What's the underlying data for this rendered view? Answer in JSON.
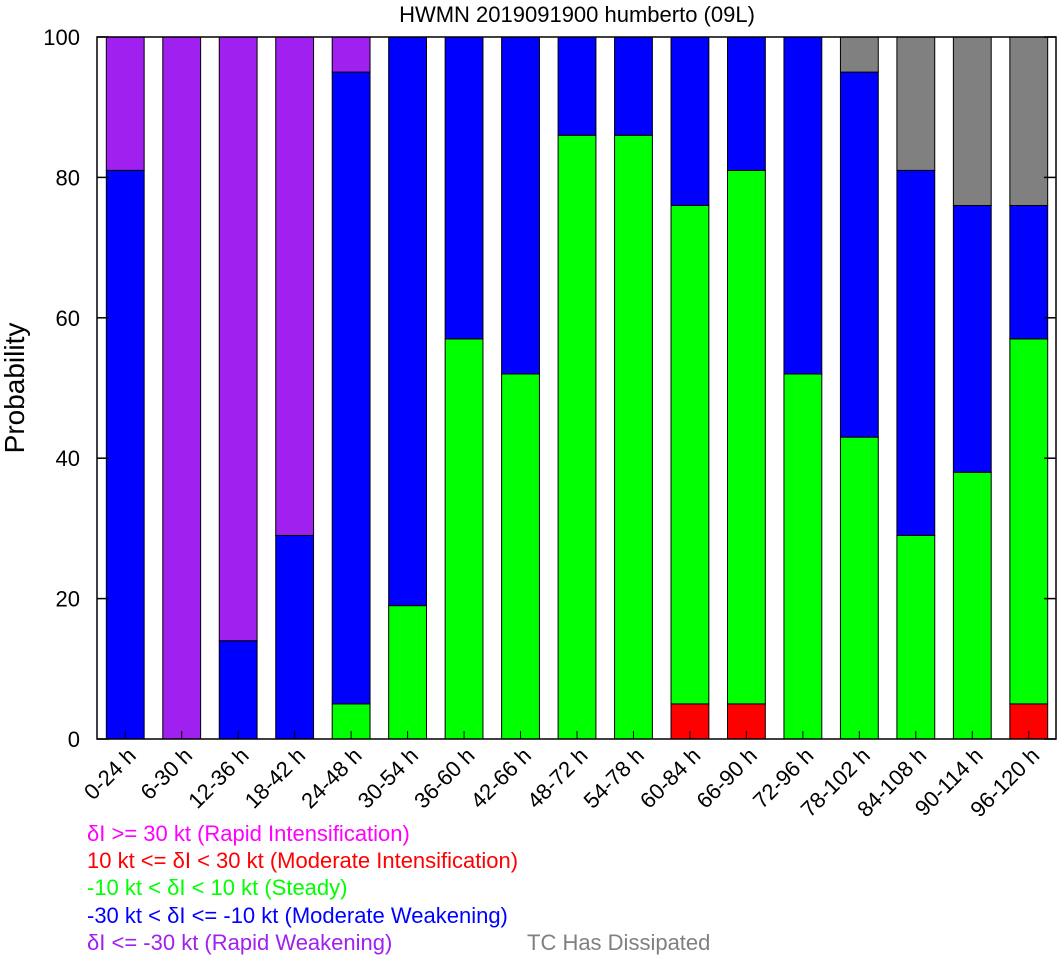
{
  "chart_data": {
    "type": "bar",
    "stacked": true,
    "title": "HWMN 2019091900 humberto (09L)",
    "ylabel": "Probability",
    "xlabel": "",
    "ylim": [
      0,
      100
    ],
    "yticks": [
      0,
      20,
      40,
      60,
      80,
      100
    ],
    "categories": [
      "0-24 h",
      "6-30 h",
      "12-36 h",
      "18-42 h",
      "24-48 h",
      "30-54 h",
      "36-60 h",
      "42-66 h",
      "48-72 h",
      "54-78 h",
      "60-84 h",
      "66-90 h",
      "72-96 h",
      "78-102 h",
      "84-108 h",
      "90-114 h",
      "96-120 h"
    ],
    "series": [
      {
        "name": "δI <= -30 kt (Rapid Weakening)",
        "color": "#a020f0",
        "values": [
          19,
          100,
          86,
          71,
          5,
          0,
          0,
          0,
          0,
          0,
          0,
          0,
          0,
          0,
          0,
          0,
          0
        ]
      },
      {
        "name": "-30 kt < δI <= -10 kt (Moderate Weakening)",
        "color": "#0000ff",
        "values": [
          81,
          0,
          14,
          29,
          90,
          81,
          43,
          48,
          14,
          14,
          24,
          19,
          48,
          52,
          52,
          38,
          19
        ]
      },
      {
        "name": "-10 kt < δI < 10 kt (Steady)",
        "color": "#00ff00",
        "values": [
          0,
          0,
          0,
          0,
          5,
          19,
          57,
          52,
          86,
          86,
          71,
          76,
          52,
          43,
          29,
          38,
          52
        ]
      },
      {
        "name": "10 kt <= δI < 30 kt (Moderate Intensification)",
        "color": "#ff0000",
        "values": [
          0,
          0,
          0,
          0,
          0,
          0,
          0,
          0,
          0,
          0,
          5,
          5,
          0,
          0,
          0,
          0,
          5
        ]
      },
      {
        "name": "δI >= 30 kt (Rapid Intensification)",
        "color": "#ff00ff",
        "values": [
          0,
          0,
          0,
          0,
          0,
          0,
          0,
          0,
          0,
          0,
          0,
          0,
          0,
          0,
          0,
          0,
          0
        ]
      },
      {
        "name": "TC Has Dissipated",
        "color": "#808080",
        "values": [
          0,
          0,
          0,
          0,
          0,
          0,
          0,
          0,
          0,
          0,
          0,
          0,
          0,
          5,
          19,
          24,
          24
        ]
      }
    ],
    "stack_order": [
      3,
      2,
      1,
      0,
      5
    ],
    "legend": {
      "placement": "bottom",
      "items": [
        {
          "text": "δI >= 30 kt (Rapid Intensification)",
          "color": "#ff00ff"
        },
        {
          "text": "10 kt <= δI < 30 kt (Moderate Intensification)",
          "color": "#ff0000"
        },
        {
          "text": "-10 kt < δI < 10 kt (Steady)",
          "color": "#00ff00"
        },
        {
          "text": "-30 kt < δI <= -10 kt (Moderate Weakening)",
          "color": "#0000ff"
        },
        {
          "text": "δI <= -30 kt (Rapid Weakening)",
          "color": "#a020f0"
        }
      ],
      "dissipated": {
        "text": "TC Has Dissipated",
        "color": "#808080"
      }
    },
    "grid": false
  }
}
